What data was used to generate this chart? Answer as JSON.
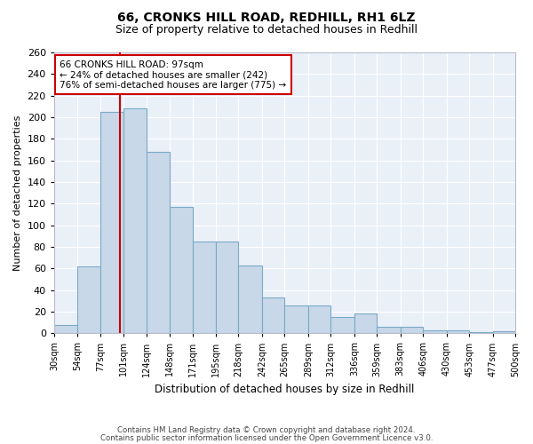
{
  "title1": "66, CRONKS HILL ROAD, REDHILL, RH1 6LZ",
  "title2": "Size of property relative to detached houses in Redhill",
  "xlabel": "Distribution of detached houses by size in Redhill",
  "ylabel": "Number of detached properties",
  "footer1": "Contains HM Land Registry data © Crown copyright and database right 2024.",
  "footer2": "Contains public sector information licensed under the Open Government Licence v3.0.",
  "bin_labels": [
    "30sqm",
    "54sqm",
    "77sqm",
    "101sqm",
    "124sqm",
    "148sqm",
    "171sqm",
    "195sqm",
    "218sqm",
    "242sqm",
    "265sqm",
    "289sqm",
    "312sqm",
    "336sqm",
    "359sqm",
    "383sqm",
    "406sqm",
    "430sqm",
    "453sqm",
    "477sqm",
    "500sqm"
  ],
  "bar_heights": [
    8,
    62,
    205,
    208,
    168,
    117,
    85,
    85,
    63,
    33,
    26,
    26,
    15,
    18,
    6,
    6,
    3,
    3,
    1,
    2
  ],
  "bar_color": "#c8d8e8",
  "bar_edge_color": "#7aaac8",
  "vline_x": 97,
  "vline_color": "#cc0000",
  "annotation_text": "66 CRONKS HILL ROAD: 97sqm\n← 24% of detached houses are smaller (242)\n76% of semi-detached houses are larger (775) →",
  "annotation_box_color": "#cc0000",
  "ylim": [
    0,
    260
  ],
  "background_color": "#eaf0f8",
  "grid_color": "#ffffff",
  "bin_edges": [
    30,
    54,
    77,
    101,
    124,
    148,
    171,
    195,
    218,
    242,
    265,
    289,
    312,
    336,
    359,
    383,
    406,
    430,
    453,
    477,
    500
  ]
}
